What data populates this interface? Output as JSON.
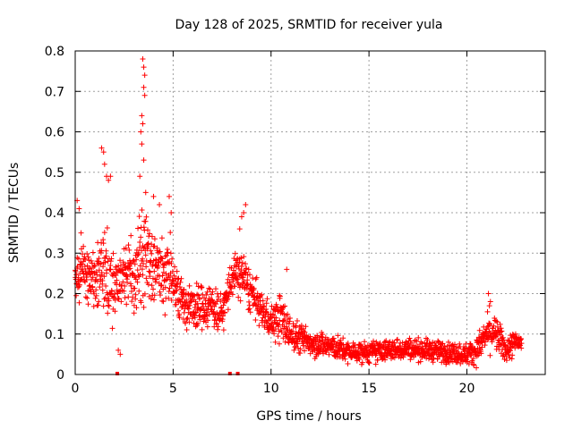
{
  "chart_data": {
    "type": "scatter",
    "title": "Day 128 of 2025, SRMTID for receiver yula",
    "xlabel": "GPS time / hours",
    "ylabel": "SRMTID / TECUs",
    "xlim": [
      0,
      24
    ],
    "ylim": [
      0,
      0.8
    ],
    "x_ticks": [
      0,
      5,
      10,
      15,
      20
    ],
    "x_tick_labels": [
      "0",
      "5",
      "10",
      "15",
      "20"
    ],
    "y_ticks": [
      0,
      0.1,
      0.2,
      0.3,
      0.4,
      0.5,
      0.6,
      0.7,
      0.8
    ],
    "y_tick_labels": [
      "0",
      "0.1",
      "0.2",
      "0.3",
      "0.4",
      "0.5",
      "0.6",
      "0.7",
      "0.8"
    ],
    "grid": true,
    "marker": "+",
    "color": "#ff0000",
    "series": [
      {
        "name": "SRMTID",
        "profile": [
          [
            0.0,
            0.24,
            0.06
          ],
          [
            0.5,
            0.25,
            0.07
          ],
          [
            1.0,
            0.22,
            0.08
          ],
          [
            1.5,
            0.26,
            0.1
          ],
          [
            2.0,
            0.23,
            0.1
          ],
          [
            2.5,
            0.25,
            0.08
          ],
          [
            3.0,
            0.24,
            0.08
          ],
          [
            3.5,
            0.3,
            0.12
          ],
          [
            4.0,
            0.27,
            0.09
          ],
          [
            4.5,
            0.25,
            0.08
          ],
          [
            5.0,
            0.24,
            0.07
          ],
          [
            5.5,
            0.18,
            0.05
          ],
          [
            6.0,
            0.16,
            0.05
          ],
          [
            6.5,
            0.17,
            0.05
          ],
          [
            7.0,
            0.17,
            0.06
          ],
          [
            7.5,
            0.15,
            0.04
          ],
          [
            8.0,
            0.24,
            0.05
          ],
          [
            8.5,
            0.25,
            0.06
          ],
          [
            9.0,
            0.2,
            0.05
          ],
          [
            9.5,
            0.16,
            0.04
          ],
          [
            10.0,
            0.13,
            0.04
          ],
          [
            10.5,
            0.14,
            0.06
          ],
          [
            11.0,
            0.1,
            0.04
          ],
          [
            12.0,
            0.08,
            0.03
          ],
          [
            13.0,
            0.07,
            0.03
          ],
          [
            14.0,
            0.055,
            0.025
          ],
          [
            15.0,
            0.055,
            0.025
          ],
          [
            16.0,
            0.06,
            0.025
          ],
          [
            17.0,
            0.065,
            0.025
          ],
          [
            18.0,
            0.06,
            0.025
          ],
          [
            19.0,
            0.055,
            0.025
          ],
          [
            20.0,
            0.05,
            0.025
          ],
          [
            20.5,
            0.06,
            0.03
          ],
          [
            21.0,
            0.1,
            0.04
          ],
          [
            21.5,
            0.1,
            0.04
          ],
          [
            22.0,
            0.06,
            0.03
          ],
          [
            22.5,
            0.08,
            0.03
          ],
          [
            22.8,
            0.08,
            0.02
          ]
        ],
        "features": [
          {
            "x": 0.1,
            "y": 0.43
          },
          {
            "x": 0.2,
            "y": 0.41
          },
          {
            "x": 0.3,
            "y": 0.35
          },
          {
            "x": 1.35,
            "y": 0.56
          },
          {
            "x": 1.45,
            "y": 0.55
          },
          {
            "x": 1.5,
            "y": 0.52
          },
          {
            "x": 1.6,
            "y": 0.49
          },
          {
            "x": 1.7,
            "y": 0.48
          },
          {
            "x": 1.8,
            "y": 0.49
          },
          {
            "x": 2.2,
            "y": 0.06
          },
          {
            "x": 2.3,
            "y": 0.05
          },
          {
            "x": 3.45,
            "y": 0.78
          },
          {
            "x": 3.5,
            "y": 0.76
          },
          {
            "x": 3.55,
            "y": 0.74
          },
          {
            "x": 3.5,
            "y": 0.71
          },
          {
            "x": 3.55,
            "y": 0.69
          },
          {
            "x": 3.4,
            "y": 0.64
          },
          {
            "x": 3.45,
            "y": 0.62
          },
          {
            "x": 3.35,
            "y": 0.6
          },
          {
            "x": 3.4,
            "y": 0.57
          },
          {
            "x": 3.5,
            "y": 0.53
          },
          {
            "x": 3.3,
            "y": 0.49
          },
          {
            "x": 3.6,
            "y": 0.45
          },
          {
            "x": 4.0,
            "y": 0.44
          },
          {
            "x": 4.3,
            "y": 0.42
          },
          {
            "x": 4.8,
            "y": 0.44
          },
          {
            "x": 4.9,
            "y": 0.4
          },
          {
            "x": 8.7,
            "y": 0.42
          },
          {
            "x": 8.6,
            "y": 0.4
          },
          {
            "x": 8.5,
            "y": 0.39
          },
          {
            "x": 8.4,
            "y": 0.36
          },
          {
            "x": 10.8,
            "y": 0.26
          },
          {
            "x": 21.1,
            "y": 0.2
          },
          {
            "x": 21.2,
            "y": 0.18
          },
          {
            "x": 21.15,
            "y": 0.17
          }
        ],
        "gap_markers_x": [
          2.15,
          7.9,
          8.3
        ]
      }
    ]
  }
}
